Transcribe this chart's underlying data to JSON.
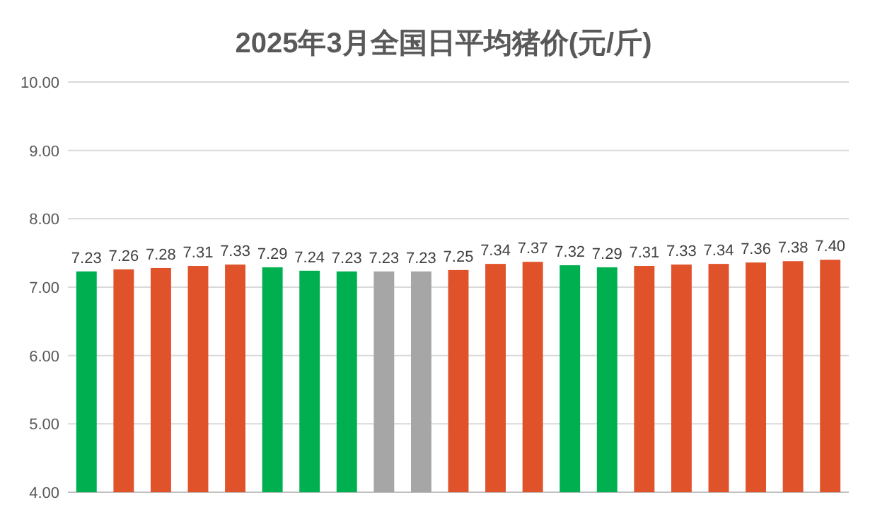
{
  "chart_data": {
    "type": "bar",
    "title": "2025年3月全国日平均猪价(元/斤)",
    "categories": [
      null,
      null,
      null,
      null,
      null,
      null,
      null,
      null,
      null,
      null,
      null,
      null,
      null,
      null,
      null,
      null,
      null,
      null,
      null,
      null,
      null
    ],
    "values": [
      7.23,
      7.26,
      7.28,
      7.31,
      7.33,
      7.29,
      7.24,
      7.23,
      7.23,
      7.23,
      7.25,
      7.34,
      7.37,
      7.32,
      7.29,
      7.31,
      7.33,
      7.34,
      7.36,
      7.38,
      7.4
    ],
    "value_labels": [
      "7.23",
      "7.26",
      "7.28",
      "7.31",
      "7.33",
      "7.29",
      "7.24",
      "7.23",
      "7.23",
      "7.23",
      "7.25",
      "7.34",
      "7.37",
      "7.32",
      "7.29",
      "7.31",
      "7.33",
      "7.34",
      "7.36",
      "7.38",
      "7.40"
    ],
    "colors": [
      "#00b050",
      "#e0522a",
      "#e0522a",
      "#e0522a",
      "#e0522a",
      "#00b050",
      "#00b050",
      "#00b050",
      "#a6a6a6",
      "#a6a6a6",
      "#e0522a",
      "#e0522a",
      "#e0522a",
      "#00b050",
      "#00b050",
      "#e0522a",
      "#e0522a",
      "#e0522a",
      "#e0522a",
      "#e0522a",
      "#e0522a"
    ],
    "ylim": [
      4,
      10
    ],
    "yticks": [
      {
        "value": 4,
        "label": "4.00"
      },
      {
        "value": 5,
        "label": "5.00"
      },
      {
        "value": 6,
        "label": "6.00"
      },
      {
        "value": 7,
        "label": "7.00"
      },
      {
        "value": 8,
        "label": "8.00"
      },
      {
        "value": 9,
        "label": "9.00"
      },
      {
        "value": 10,
        "label": "10.00"
      }
    ],
    "grid": "y"
  }
}
